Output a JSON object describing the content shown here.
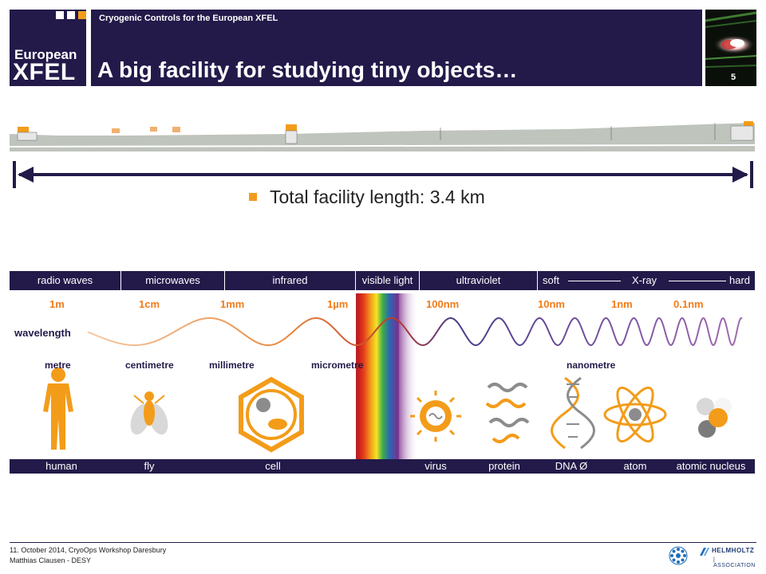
{
  "header": {
    "logo_line1": "European",
    "logo_line2": "XFEL",
    "subtitle": "Cryogenic Controls for the European XFEL",
    "title": "A big facility for studying tiny objects…",
    "page_number": "5"
  },
  "facility": {
    "bullet": "Total facility length: 3.4 km"
  },
  "spectrum": {
    "bands": [
      "radio waves",
      "microwaves",
      "infrared",
      "visible light",
      "ultraviolet",
      "soft",
      "X-ray",
      "hard"
    ],
    "wavelength_label": "wavelength",
    "wavelengths": [
      "1m",
      "1cm",
      "1mm",
      "1µm",
      "100nm",
      "10nm",
      "1nm",
      "0.1nm"
    ],
    "scales": [
      "metre",
      "centimetre",
      "millimetre",
      "micrometre",
      "nanometre"
    ],
    "objects": [
      "human",
      "fly",
      "cell",
      "virus",
      "protein",
      "DNA Ø",
      "atom",
      "atomic nucleus"
    ]
  },
  "footer": {
    "line1": "11. October 2014, CryoOps Workshop Daresbury",
    "line2": "Matthias Clausen - DESY",
    "helmholtz_1": "HELMHOLTZ",
    "helmholtz_2": "| ASSOCIATION",
    "desy_icon": "desy-logo-icon",
    "helmholtz_icon": "helmholtz-logo-icon"
  },
  "colors": {
    "navy": "#231a4a",
    "orange": "#f39c1a",
    "grey": "#9a9a9a"
  }
}
